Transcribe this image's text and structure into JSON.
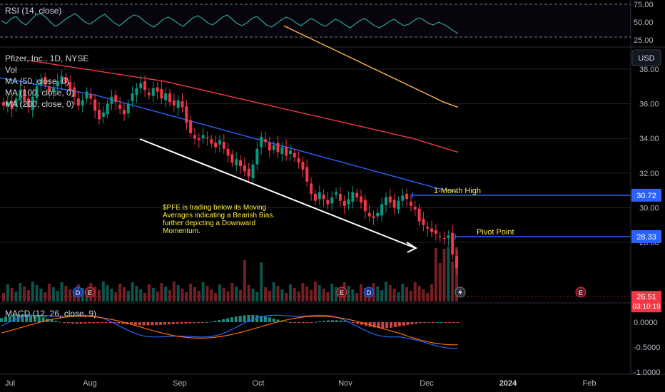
{
  "rsi": {
    "label": "RSI (14, close)",
    "ticks": [
      "75.00",
      "50.00",
      "25.00"
    ],
    "tick_values": [
      75,
      50,
      25
    ],
    "upper_band": 70,
    "lower_band": 30,
    "series": [
      52,
      48,
      55,
      58,
      50,
      46,
      53,
      60,
      62,
      57,
      50,
      44,
      48,
      54,
      58,
      62,
      56,
      50,
      47,
      52,
      57,
      61,
      55,
      49,
      45,
      50,
      56,
      60,
      58,
      52,
      47,
      43,
      48,
      54,
      57,
      53,
      48,
      44,
      50,
      56,
      59,
      55,
      49,
      46,
      51,
      57,
      60,
      54,
      48,
      45,
      49,
      55,
      58,
      52,
      46,
      43,
      48,
      53,
      57,
      54,
      49,
      45,
      50,
      55,
      52,
      47,
      44,
      49,
      54,
      51,
      46,
      42,
      47,
      52,
      55,
      50,
      45,
      42,
      46,
      51,
      54,
      49,
      45,
      47,
      52,
      56,
      53,
      48,
      46,
      50,
      47,
      43,
      38,
      34
    ]
  },
  "price_panel": {
    "symbol": "Pfizer, Inc., 1D, NYSE",
    "legend": [
      "Vol",
      "MA (50, close, 0)",
      "MA (100, close, 0)",
      "MA (200, close, 0)"
    ],
    "currency": "USD",
    "ticks": [
      "38.00",
      "36.00",
      "34.00",
      "32.00",
      "30.00",
      "28.00"
    ],
    "tick_values": [
      38,
      36,
      34,
      32,
      30,
      28
    ],
    "last_price": "26.51",
    "last_price_value": 26.51,
    "countdown": "03:10:19",
    "colors": {
      "up": "#089981",
      "down": "#f23645",
      "ma50": "#2962ff",
      "ma100": "#f23645",
      "ma200": "#ffb74d",
      "level": "#2962ff",
      "annotation": "#ffeb3b"
    }
  },
  "levels": [
    {
      "name": "1-Month High",
      "value": 30.72,
      "label": "30.72"
    },
    {
      "name": "Pivot Point",
      "value": 28.33,
      "label": "28.33"
    }
  ],
  "annotation": {
    "lines": [
      "$PFE is trading below its Moving",
      "Averages indicating a Bearish Bias.",
      "further depicting a Downward",
      "Momentum."
    ]
  },
  "event_markers": [
    "D",
    "E",
    "E",
    "D",
    "E"
  ],
  "macd": {
    "label": "MACD (12, 26, close, 9)",
    "ticks": [
      "0.0000",
      "-0.5000",
      "-1.0000"
    ],
    "tick_values": [
      0,
      -0.5,
      -1.0
    ]
  },
  "time_axis": [
    "Jul",
    "Aug",
    "Sep",
    "Oct",
    "Nov",
    "Dec",
    "2024",
    "Feb"
  ],
  "chart_data": {
    "type": "candlestick",
    "title": "Pfizer, Inc., 1D, NYSE",
    "ylim": [
      27.0,
      38.0
    ],
    "closes": [
      35.9,
      36.1,
      35.7,
      36.3,
      36.8,
      36.2,
      35.8,
      36.4,
      37.0,
      37.4,
      37.1,
      36.7,
      36.9,
      37.3,
      37.6,
      37.2,
      36.8,
      36.4,
      35.9,
      36.2,
      36.7,
      36.3,
      35.6,
      35.1,
      35.5,
      36.0,
      36.4,
      36.1,
      35.7,
      35.4,
      36.0,
      36.6,
      36.9,
      37.2,
      36.8,
      36.5,
      36.9,
      36.7,
      36.3,
      36.6,
      36.1,
      35.9,
      36.2,
      35.8,
      34.9,
      34.3,
      34.0,
      33.9,
      34.2,
      34.0,
      33.7,
      33.5,
      33.9,
      33.4,
      33.0,
      32.6,
      32.8,
      32.4,
      32.1,
      31.8,
      32.5,
      33.4,
      34.1,
      33.8,
      33.3,
      33.6,
      33.2,
      33.5,
      33.0,
      33.3,
      32.9,
      32.6,
      32.2,
      31.5,
      30.8,
      30.4,
      30.9,
      30.5,
      30.2,
      30.6,
      30.9,
      30.4,
      30.1,
      30.5,
      30.9,
      30.6,
      30.3,
      29.8,
      29.5,
      29.4,
      29.7,
      30.2,
      30.6,
      30.3,
      30.0,
      30.4,
      30.7,
      30.5,
      30.1,
      29.9,
      29.2,
      29.0,
      28.8,
      28.6,
      28.5,
      28.3,
      28.2,
      28.4,
      27.3,
      26.51
    ],
    "ma50": [
      37.5,
      37.3,
      37.1,
      36.9,
      36.7,
      36.5,
      36.2,
      35.9,
      35.6,
      35.3,
      35.0,
      34.7,
      34.4,
      34.1,
      33.8,
      33.5,
      33.2,
      32.9,
      32.6,
      32.3,
      32.0,
      31.7,
      31.4,
      31.1,
      30.9
    ],
    "ma100": [
      38.5,
      38.3,
      38.1,
      37.9,
      37.7,
      37.5,
      37.3,
      37.0,
      36.7,
      36.4,
      36.1,
      35.8,
      35.5,
      35.2,
      34.9,
      34.6,
      34.3,
      34.0,
      33.6,
      33.2
    ],
    "ma200": [
      40.5,
      40.1,
      39.7,
      39.3,
      38.9,
      38.5,
      38.1,
      37.7,
      37.3,
      36.9,
      36.5,
      36.1,
      35.8
    ],
    "trendline": {
      "from": 35.2,
      "to": 27.8
    }
  }
}
